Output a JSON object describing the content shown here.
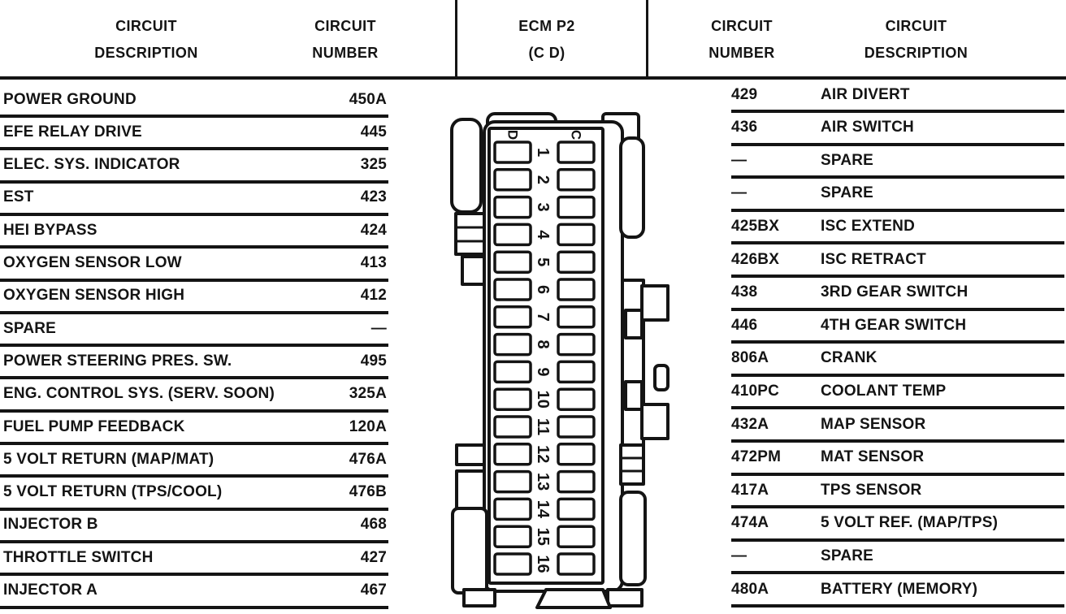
{
  "page": {
    "background": "#ffffff",
    "ink": "#141414"
  },
  "headers": {
    "left_description": [
      "CIRCUIT",
      "DESCRIPTION"
    ],
    "left_number": [
      "CIRCUIT",
      "NUMBER"
    ],
    "center": [
      "ECM P2",
      "(C D)"
    ],
    "right_number": [
      "CIRCUIT",
      "NUMBER"
    ],
    "right_description": [
      "CIRCUIT",
      "DESCRIPTION"
    ]
  },
  "left_table": {
    "rows": [
      {
        "description": "POWER GROUND",
        "number": "450A"
      },
      {
        "description": "EFE RELAY DRIVE",
        "number": "445"
      },
      {
        "description": "ELEC. SYS. INDICATOR",
        "number": "325"
      },
      {
        "description": "EST",
        "number": "423"
      },
      {
        "description": "HEI BYPASS",
        "number": "424"
      },
      {
        "description": "OXYGEN SENSOR LOW",
        "number": "413"
      },
      {
        "description": "OXYGEN SENSOR HIGH",
        "number": "412"
      },
      {
        "description": "SPARE",
        "number": "—"
      },
      {
        "description": "POWER STEERING PRES. SW.",
        "number": "495"
      },
      {
        "description": "ENG. CONTROL SYS. (SERV. SOON)",
        "number": "325A"
      },
      {
        "description": "FUEL PUMP FEEDBACK",
        "number": "120A"
      },
      {
        "description": "5 VOLT RETURN (MAP/MAT)",
        "number": "476A"
      },
      {
        "description": "5 VOLT RETURN (TPS/COOL)",
        "number": "476B"
      },
      {
        "description": "INJECTOR B",
        "number": "468"
      },
      {
        "description": "THROTTLE SWITCH",
        "number": "427"
      },
      {
        "description": "INJECTOR A",
        "number": "467"
      }
    ]
  },
  "right_table": {
    "rows": [
      {
        "number": "429",
        "description": "AIR DIVERT"
      },
      {
        "number": "436",
        "description": "AIR SWITCH"
      },
      {
        "number": "—",
        "description": "SPARE"
      },
      {
        "number": "—",
        "description": "SPARE"
      },
      {
        "number": "425BX",
        "description": "ISC EXTEND"
      },
      {
        "number": "426BX",
        "description": "ISC RETRACT"
      },
      {
        "number": "438",
        "description": "3RD GEAR SWITCH"
      },
      {
        "number": "446",
        "description": "4TH GEAR SWITCH"
      },
      {
        "number": "806A",
        "description": "CRANK"
      },
      {
        "number": "410PC",
        "description": "COOLANT TEMP"
      },
      {
        "number": "432A",
        "description": "MAP SENSOR"
      },
      {
        "number": "472PM",
        "description": "MAT SENSOR"
      },
      {
        "number": "417A",
        "description": "TPS SENSOR"
      },
      {
        "number": "474A",
        "description": "5 VOLT REF. (MAP/TPS)"
      },
      {
        "number": "—",
        "description": "SPARE"
      },
      {
        "number": "480A",
        "description": "BATTERY (MEMORY)"
      }
    ]
  },
  "connector": {
    "name": "ECM P2 (C D)",
    "column_letters": [
      "D",
      "C"
    ],
    "pins": [
      "1",
      "2",
      "3",
      "4",
      "5",
      "6",
      "7",
      "8",
      "9",
      "10",
      "11",
      "12",
      "13",
      "14",
      "15",
      "16"
    ]
  }
}
